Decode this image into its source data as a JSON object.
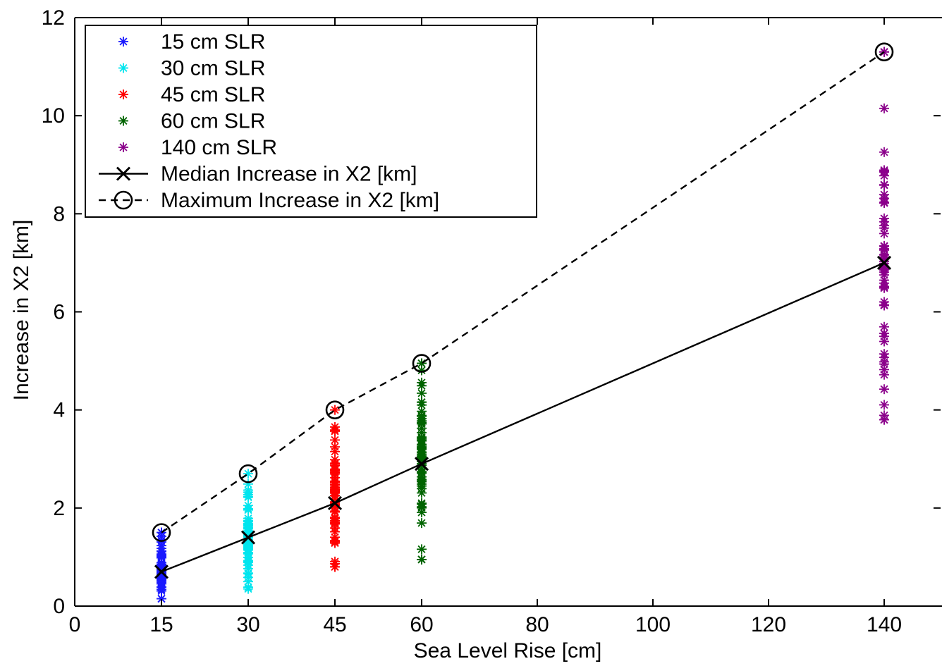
{
  "chart_data": {
    "type": "scatter",
    "xlabel": "Sea Level Rise [cm]",
    "ylabel": "Increase in X2 [km]",
    "xlim": [
      0,
      150
    ],
    "ylim": [
      0,
      12
    ],
    "x_ticks": [
      0,
      15,
      30,
      45,
      60,
      80,
      100,
      120,
      140
    ],
    "y_ticks": [
      0,
      2,
      4,
      6,
      8,
      10,
      12
    ],
    "grid": false,
    "legend_position": "top-left",
    "scatter_series": [
      {
        "name": "15 cm SLR",
        "color": "#1a1aff",
        "x": 15,
        "min": 0.15,
        "max": 1.5,
        "median": 0.7
      },
      {
        "name": "30 cm SLR",
        "color": "#00e5ee",
        "x": 30,
        "min": 0.35,
        "max": 2.7,
        "median": 1.4
      },
      {
        "name": "45 cm SLR",
        "color": "#ff0000",
        "x": 45,
        "min": 0.8,
        "max": 4.0,
        "median": 2.1
      },
      {
        "name": "60 cm SLR",
        "color": "#006400",
        "x": 60,
        "min": 0.95,
        "max": 4.95,
        "median": 2.9
      },
      {
        "name": "140 cm SLR",
        "color": "#8b008b",
        "x": 140,
        "min": 3.8,
        "max": 11.3,
        "median": 7.0
      }
    ],
    "line_series": [
      {
        "name": "Median Increase in X2 [km]",
        "color": "#000000",
        "style": "solid",
        "marker": "x",
        "x": [
          15,
          30,
          45,
          60,
          140
        ],
        "y": [
          0.7,
          1.4,
          2.1,
          2.9,
          7.0
        ]
      },
      {
        "name": "Maximum Increase in X2 [km]",
        "color": "#000000",
        "style": "dashed",
        "marker": "circle",
        "x": [
          15,
          30,
          45,
          60,
          140
        ],
        "y": [
          1.5,
          2.7,
          4.0,
          4.95,
          11.3
        ]
      }
    ]
  }
}
